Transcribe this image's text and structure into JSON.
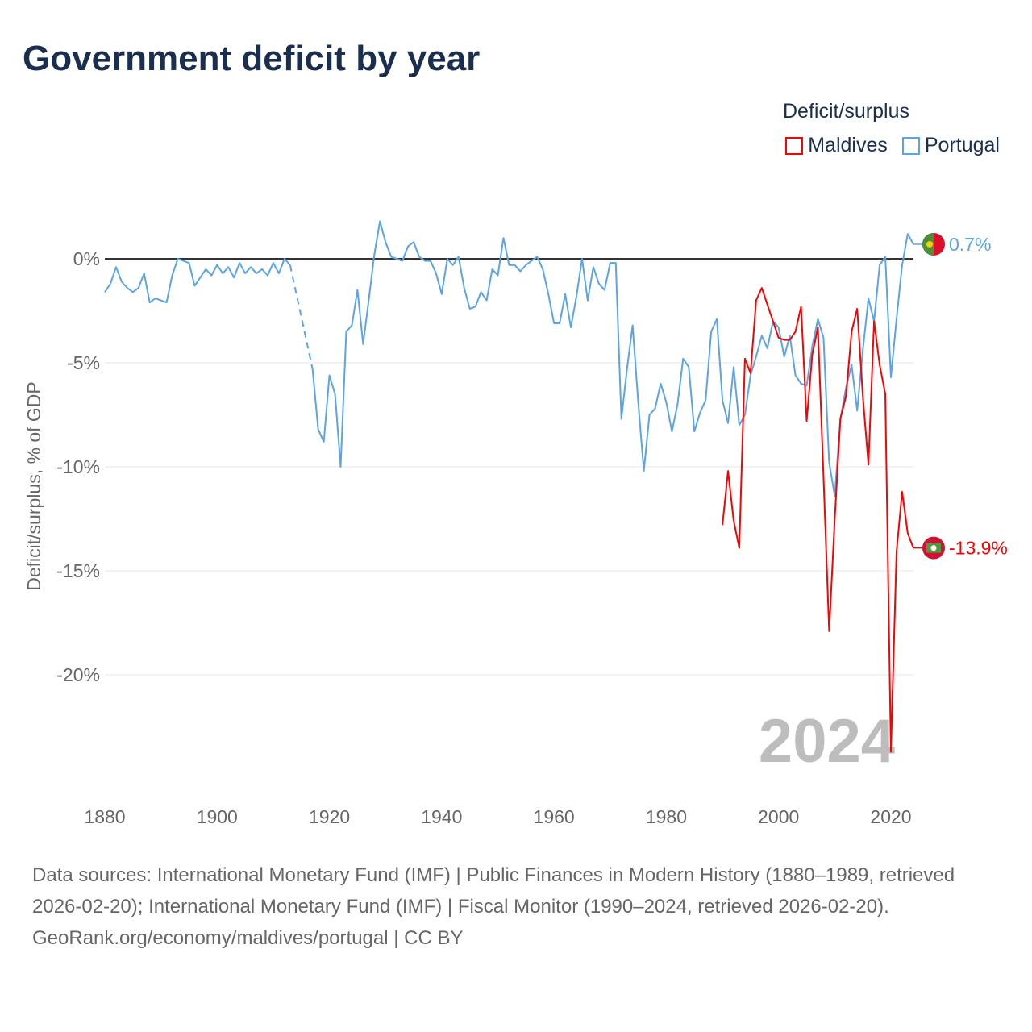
{
  "title": "Government deficit by year",
  "legend": {
    "title": "Deficit/surplus",
    "items": [
      {
        "name": "Maldives",
        "color": "#ff0000"
      },
      {
        "name": "Portugal",
        "color": "#5ba4e8"
      }
    ]
  },
  "watermark_year": "2024",
  "footer": {
    "sources": "Data sources: International Monetary Fund (IMF) | Public Finances in Modern History (1880–1989, retrieved 2026-02-20); International Monetary Fund (IMF) | Fiscal Monitor (1990–2024, retrieved 2026-02-20).",
    "credit": "GeoRank.org/economy/maldives/portugal | CC BY"
  },
  "chart_data": {
    "type": "line",
    "title": "Government deficit by year",
    "xlabel": "",
    "ylabel": "Deficit/surplus, % of GDP",
    "xlim": [
      1880,
      2024
    ],
    "ylim": [
      -25.5,
      2.5
    ],
    "x_ticks": [
      1880,
      1900,
      1920,
      1940,
      1960,
      1980,
      2000,
      2020
    ],
    "x_tick_labels": [
      "1880",
      "1900",
      "1920",
      "1940",
      "1960",
      "1980",
      "2000",
      "2020"
    ],
    "y_ticks": [
      0,
      -5,
      -10,
      -15,
      -20
    ],
    "y_tick_labels": [
      "0%",
      "-5%",
      "-10%",
      "-15%",
      "-20%"
    ],
    "legend_position": "top-right",
    "series": [
      {
        "name": "Portugal",
        "color": "#5ba4e8",
        "end_label": "0.7%",
        "start_year": 1880,
        "values": [
          -1.6,
          -1.2,
          -0.4,
          -1.1,
          -1.4,
          -1.6,
          -1.4,
          -0.7,
          -2.1,
          -1.9,
          -2.0,
          -2.1,
          -0.8,
          0,
          -0.1,
          -0.2,
          -1.3,
          -0.9,
          -0.5,
          -0.8,
          -0.3,
          -0.7,
          -0.4,
          -0.9,
          -0.2,
          -0.7,
          -0.4,
          -0.7,
          -0.5,
          -0.8,
          -0.2,
          -0.7,
          0,
          -0.3,
          null,
          null,
          null,
          -5.3,
          -8.2,
          -8.8,
          -5.6,
          -6.5,
          -10.0,
          -3.5,
          -3.2,
          -1.5,
          -4.1,
          -2.0,
          0.2,
          1.8,
          0.8,
          0.1,
          0,
          -0.1,
          0.6,
          0.8,
          0.1,
          -0.1,
          -0.1,
          -0.7,
          -1.7,
          0,
          -0.3,
          0.1,
          -1.4,
          -2.4,
          -2.3,
          -1.6,
          -2.0,
          -0.5,
          -0.8,
          1.0,
          -0.3,
          -0.3,
          -0.6,
          -0.3,
          -0.1,
          0.1,
          -0.5,
          -1.7,
          -3.1,
          -3.1,
          -1.7,
          -3.3,
          -1.8,
          0,
          -2.0,
          -0.4,
          -1.2,
          -1.5,
          -0.2,
          -0.2,
          -7.7,
          -5.3,
          -3.2,
          -6.9,
          -10.2,
          -7.5,
          -7.2,
          -6.0,
          -6.9,
          -8.3,
          -7.0,
          -4.8,
          -5.2,
          -8.3,
          -7.4,
          -6.8,
          -3.5,
          -2.9,
          -6.8,
          -7.9,
          -5.2,
          -8.0,
          -7.5,
          -5.6,
          -4.7,
          -3.7,
          -4.3,
          -3.0,
          -3.3,
          -4.7,
          -3.7,
          -5.6,
          -6.0,
          -6.1,
          -4.2,
          -2.9,
          -3.8,
          -9.8,
          -11.4,
          -7.7,
          -6.2,
          -5.1,
          -7.3,
          -4.4,
          -1.9,
          -3.0,
          -0.3,
          0.1,
          -5.7,
          -2.9,
          -0.3,
          1.2,
          0.7
        ]
      },
      {
        "name": "Maldives",
        "color": "#ff0000",
        "end_label": "-13.9%",
        "start_year": 1990,
        "values": [
          -12.8,
          -10.2,
          -12.6,
          -13.9,
          -4.8,
          -5.5,
          -2.0,
          -1.4,
          -2.2,
          -3.0,
          -3.8,
          -3.9,
          -3.9,
          -3.5,
          -2.3,
          -7.8,
          -4.6,
          -3.3,
          -10.5,
          -17.9,
          -12.5,
          -7.7,
          -6.6,
          -3.5,
          -2.4,
          -6.6,
          -9.9,
          -3.0,
          -5.1,
          -6.5,
          -23.7,
          -14.1,
          -11.2,
          -13.2,
          -13.9
        ]
      }
    ]
  }
}
